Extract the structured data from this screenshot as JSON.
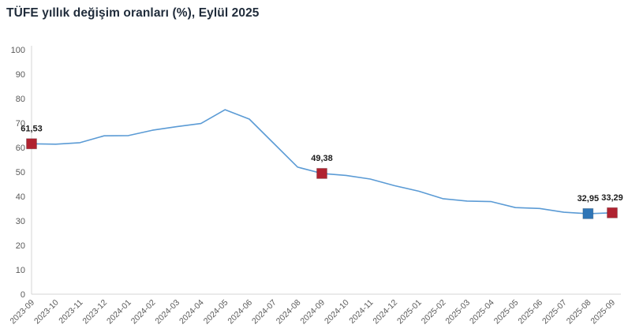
{
  "title": "TÜFE yıllık değişim oranları (%), Eylül 2025",
  "colors": {
    "title": "#1f2b3a",
    "line": "#5b9bd5",
    "axis_line": "#d6d6d6",
    "tick_label": "#595959",
    "data_label": "#1a1a1a",
    "marker_red": "#b02230",
    "marker_blue": "#2e75b6",
    "background": "#ffffff"
  },
  "chart_data": {
    "type": "line",
    "title": "TÜFE yıllık değişim oranları (%), Eylül 2025",
    "categories": [
      "2023-09",
      "2023-10",
      "2023-11",
      "2023-12",
      "2024-01",
      "2024-02",
      "2024-03",
      "2024-04",
      "2024-05",
      "2024-06",
      "2024-07",
      "2024-08",
      "2024-09",
      "2024-10",
      "2024-11",
      "2024-12",
      "2025-01",
      "2025-02",
      "2025-03",
      "2025-04",
      "2025-05",
      "2025-06",
      "2025-07",
      "2025-08",
      "2025-09"
    ],
    "values": [
      61.53,
      61.36,
      61.98,
      64.77,
      64.86,
      67.07,
      68.5,
      69.8,
      75.45,
      71.6,
      61.78,
      51.97,
      49.38,
      48.58,
      47.09,
      44.38,
      42.12,
      39.05,
      38.1,
      37.86,
      35.41,
      35.05,
      33.52,
      32.95,
      33.29
    ],
    "xlabel": "",
    "ylabel": "",
    "ylim": [
      0,
      100
    ],
    "ytick_step": 10,
    "grid": false,
    "legend_position": "none",
    "labeled_points": [
      {
        "category": "2023-09",
        "label": "61,53",
        "marker": "red"
      },
      {
        "category": "2024-09",
        "label": "49,38",
        "marker": "red"
      },
      {
        "category": "2025-08",
        "label": "32,95",
        "marker": "blue"
      },
      {
        "category": "2025-09",
        "label": "33,29",
        "marker": "red"
      }
    ]
  }
}
